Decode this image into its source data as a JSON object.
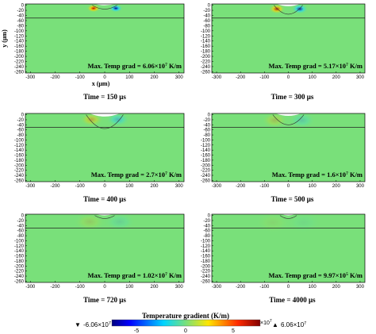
{
  "y_axis_label": "y (μm)",
  "x_axis_label": "x (μm)",
  "x_ticks": [
    "-300",
    "-200",
    "-100",
    "0",
    "100",
    "200",
    "300"
  ],
  "y_ticks": [
    "0",
    "-20",
    "-40",
    "-60",
    "-80",
    "-100",
    "-120",
    "-140",
    "-160",
    "-180",
    "-200",
    "-220",
    "-240",
    "-260"
  ],
  "panels": [
    {
      "time": "Time = 150 μs",
      "grad_label": "Max. Temp grad = ",
      "grad_mant": "6.06×",
      "grad_exp": "7",
      "grad_unit": " K/m",
      "intensity": 1.0,
      "spread": 1.0
    },
    {
      "time": "Time = 300 μs",
      "grad_label": "Max. Temp grad = ",
      "grad_mant": "5.17×",
      "grad_exp": "7",
      "grad_unit": " K/m",
      "intensity": 0.85,
      "spread": 1.25
    },
    {
      "time": "Time = 400 μs",
      "grad_label": "Max. Temp grad = ",
      "grad_mant": "2.7×",
      "grad_exp": "7",
      "grad_unit": " K/m",
      "intensity": 0.45,
      "spread": 1.7
    },
    {
      "time": "Time = 500 μs",
      "grad_label": "Max. Temp grad = ",
      "grad_mant": "1.6×",
      "grad_exp": "7",
      "grad_unit": " K/m",
      "intensity": 0.27,
      "spread": 2.0
    },
    {
      "time": "Time = 720 μs",
      "grad_label": "Max. Temp grad = ",
      "grad_mant": "1.02×",
      "grad_exp": "7",
      "grad_unit": " K/m",
      "intensity": 0.17,
      "spread": 2.3
    },
    {
      "time": "Time = 4000 μs",
      "grad_label": "Max. Temp grad = ",
      "grad_mant": "9.97×",
      "grad_exp": "5",
      "grad_unit": " K/m",
      "intensity": 0.02,
      "spread": 2.6
    }
  ],
  "colorbar": {
    "title": "Temperature gradient (K/m)",
    "ticks": [
      "-5",
      "0",
      "5"
    ],
    "exp_base": "×10",
    "exp": "7",
    "min_mant": "-6.06×10",
    "min_exp": "7",
    "max_mant": "6.06×10",
    "max_exp": "7",
    "min_symbol": "▼",
    "max_symbol": "▲"
  },
  "colors": {
    "neutral": "#79e07a",
    "interface_line": "#222222"
  }
}
